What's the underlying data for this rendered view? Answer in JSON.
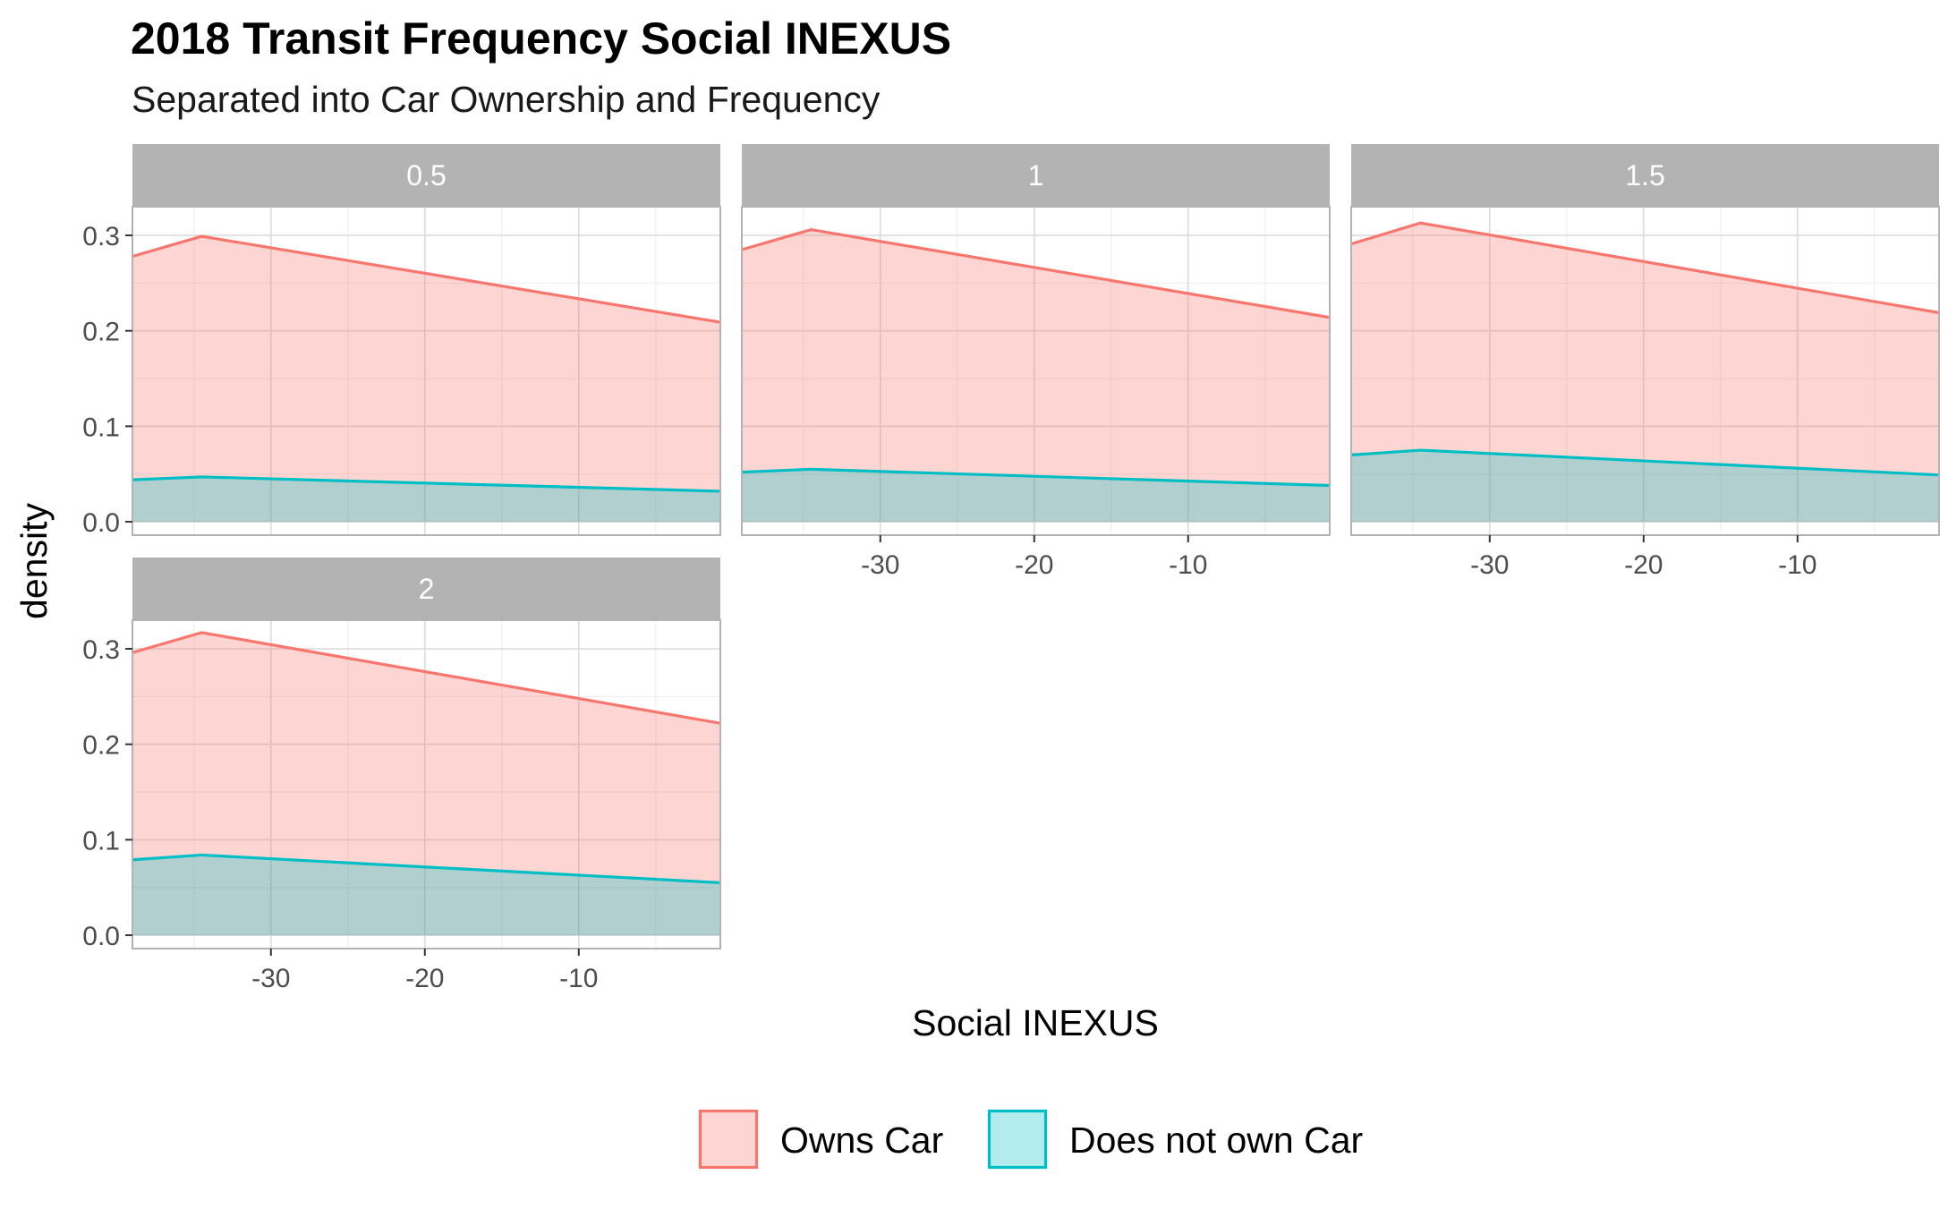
{
  "title": "2018 Transit Frequency Social INEXUS",
  "subtitle": "Separated into Car Ownership and Frequency",
  "chart_data": {
    "type": "area",
    "xlabel": "Social INEXUS",
    "ylabel": "density",
    "xlim": [
      -39,
      -0.8
    ],
    "ylim": [
      -0.014,
      0.33
    ],
    "x_ticks": [
      -30,
      -20,
      -10
    ],
    "y_ticks": [
      0.0,
      0.1,
      0.2,
      0.3
    ],
    "y_tick_labels": [
      "0.0",
      "0.1",
      "0.2",
      "0.3"
    ],
    "x_tick_labels": [
      "-30",
      "-20",
      "-10"
    ],
    "grid": true,
    "legend_position": "bottom",
    "legend": [
      {
        "name": "Owns Car",
        "line_color": "#F8766D",
        "fill_color": "#F8766D"
      },
      {
        "name": "Does not own Car",
        "line_color": "#00BFC4",
        "fill_color": "#00BFC4"
      }
    ],
    "facets": [
      {
        "label": "0.5",
        "series": [
          {
            "name": "Owns Car",
            "x": [
              -39,
              -34.5,
              -0.8
            ],
            "y": [
              0.278,
              0.299,
              0.209
            ]
          },
          {
            "name": "Does not own Car",
            "x": [
              -39,
              -34.5,
              -0.8
            ],
            "y": [
              0.044,
              0.047,
              0.032
            ]
          }
        ]
      },
      {
        "label": "1",
        "series": [
          {
            "name": "Owns Car",
            "x": [
              -39,
              -34.5,
              -0.8
            ],
            "y": [
              0.285,
              0.306,
              0.214
            ]
          },
          {
            "name": "Does not own Car",
            "x": [
              -39,
              -34.5,
              -0.8
            ],
            "y": [
              0.052,
              0.055,
              0.038
            ]
          }
        ]
      },
      {
        "label": "1.5",
        "series": [
          {
            "name": "Owns Car",
            "x": [
              -39,
              -34.5,
              -0.8
            ],
            "y": [
              0.291,
              0.313,
              0.219
            ]
          },
          {
            "name": "Does not own Car",
            "x": [
              -39,
              -34.5,
              -0.8
            ],
            "y": [
              0.07,
              0.075,
              0.049
            ]
          }
        ]
      },
      {
        "label": "2",
        "series": [
          {
            "name": "Owns Car",
            "x": [
              -39,
              -34.5,
              -0.8
            ],
            "y": [
              0.296,
              0.317,
              0.222
            ]
          },
          {
            "name": "Does not own Car",
            "x": [
              -39,
              -34.5,
              -0.8
            ],
            "y": [
              0.079,
              0.084,
              0.055
            ]
          }
        ]
      }
    ]
  }
}
